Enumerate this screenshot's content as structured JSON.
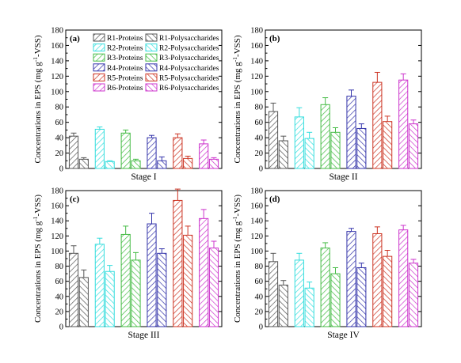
{
  "legend": {
    "entries": [
      {
        "label": "R1-Proteins",
        "color": "#555555",
        "hatch": "fwd"
      },
      {
        "label": "R1-Polysaccharides",
        "color": "#555555",
        "hatch": "back"
      },
      {
        "label": "R2-Proteins",
        "color": "#33dddd",
        "hatch": "fwd"
      },
      {
        "label": "R2-Polysaccharides",
        "color": "#33dddd",
        "hatch": "back"
      },
      {
        "label": "R3-Proteins",
        "color": "#44bb44",
        "hatch": "fwd"
      },
      {
        "label": "R3-Polysaccharides",
        "color": "#44bb44",
        "hatch": "back"
      },
      {
        "label": "R4-Proteins",
        "color": "#3333aa",
        "hatch": "fwd"
      },
      {
        "label": "R4-Polysaccharides",
        "color": "#3333aa",
        "hatch": "back"
      },
      {
        "label": "R5-Proteins",
        "color": "#cc3322",
        "hatch": "fwd"
      },
      {
        "label": "R5-Polysaccharides",
        "color": "#cc3322",
        "hatch": "back"
      },
      {
        "label": "R6-Proteins",
        "color": "#cc33cc",
        "hatch": "fwd"
      },
      {
        "label": "R6-Polysaccharides",
        "color": "#cc33cc",
        "hatch": "back"
      }
    ]
  },
  "chart_data": [
    {
      "type": "bar",
      "panel": "(a)",
      "xlabel": "Stage I",
      "ylabel_main": "Concentrations in EPS (mg g",
      "ylabel_sup": "-1",
      "ylabel_tail": "-VSS)",
      "ylim": [
        0,
        180
      ],
      "yticks": [
        0,
        20,
        40,
        60,
        80,
        100,
        120,
        140,
        160,
        180
      ],
      "categories": [
        "R1",
        "R2",
        "R3",
        "R4",
        "R5",
        "R6"
      ],
      "series": [
        {
          "name": "Proteins",
          "values": [
            42,
            51,
            46,
            40,
            40,
            32
          ],
          "errors": [
            4,
            3,
            4,
            3,
            5,
            5
          ]
        },
        {
          "name": "Polysaccharides",
          "values": [
            12,
            9,
            10,
            10,
            13,
            12
          ],
          "errors": [
            2,
            1,
            2,
            5,
            3,
            2
          ]
        }
      ]
    },
    {
      "type": "bar",
      "panel": "(b)",
      "xlabel": "Stage II",
      "ylabel_main": "Concentrations in EPS (mg g",
      "ylabel_sup": "-1",
      "ylabel_tail": "-VSS)",
      "ylim": [
        0,
        180
      ],
      "yticks": [
        0,
        20,
        40,
        60,
        80,
        100,
        120,
        140,
        160,
        180
      ],
      "categories": [
        "R1",
        "R2",
        "R3",
        "R4",
        "R5",
        "R6"
      ],
      "series": [
        {
          "name": "Proteins",
          "values": [
            74,
            67,
            83,
            94,
            112,
            115
          ],
          "errors": [
            11,
            12,
            9,
            8,
            13,
            8
          ]
        },
        {
          "name": "Polysaccharides",
          "values": [
            36,
            39,
            47,
            52,
            61,
            58
          ],
          "errors": [
            6,
            8,
            6,
            6,
            7,
            5
          ]
        }
      ]
    },
    {
      "type": "bar",
      "panel": "(c)",
      "xlabel": "Stage III",
      "ylabel_main": "Concentrations in EPS (mg g",
      "ylabel_sup": "-1",
      "ylabel_tail": "-VSS)",
      "ylim": [
        0,
        180
      ],
      "yticks": [
        0,
        20,
        40,
        60,
        80,
        100,
        120,
        140,
        160,
        180
      ],
      "categories": [
        "R1",
        "R2",
        "R3",
        "R4",
        "R5",
        "R6"
      ],
      "series": [
        {
          "name": "Proteins",
          "values": [
            97,
            109,
            122,
            136,
            167,
            143
          ],
          "errors": [
            10,
            8,
            11,
            14,
            15,
            12
          ]
        },
        {
          "name": "Polysaccharides",
          "values": [
            65,
            73,
            88,
            97,
            121,
            104
          ],
          "errors": [
            10,
            8,
            10,
            6,
            12,
            9
          ]
        }
      ]
    },
    {
      "type": "bar",
      "panel": "(d)",
      "xlabel": "Stage IV",
      "ylabel_main": "Concentrations in EPS (mg g",
      "ylabel_sup": "-1",
      "ylabel_tail": "-VSS)",
      "ylim": [
        0,
        180
      ],
      "yticks": [
        0,
        20,
        40,
        60,
        80,
        100,
        120,
        140,
        160,
        180
      ],
      "categories": [
        "R1",
        "R2",
        "R3",
        "R4",
        "R5",
        "R6"
      ],
      "series": [
        {
          "name": "Proteins",
          "values": [
            86,
            88,
            104,
            126,
            123,
            128
          ],
          "errors": [
            11,
            9,
            7,
            4,
            9,
            6
          ]
        },
        {
          "name": "Polysaccharides",
          "values": [
            55,
            51,
            70,
            78,
            93,
            84
          ],
          "errors": [
            6,
            8,
            8,
            6,
            8,
            5
          ]
        }
      ]
    }
  ]
}
